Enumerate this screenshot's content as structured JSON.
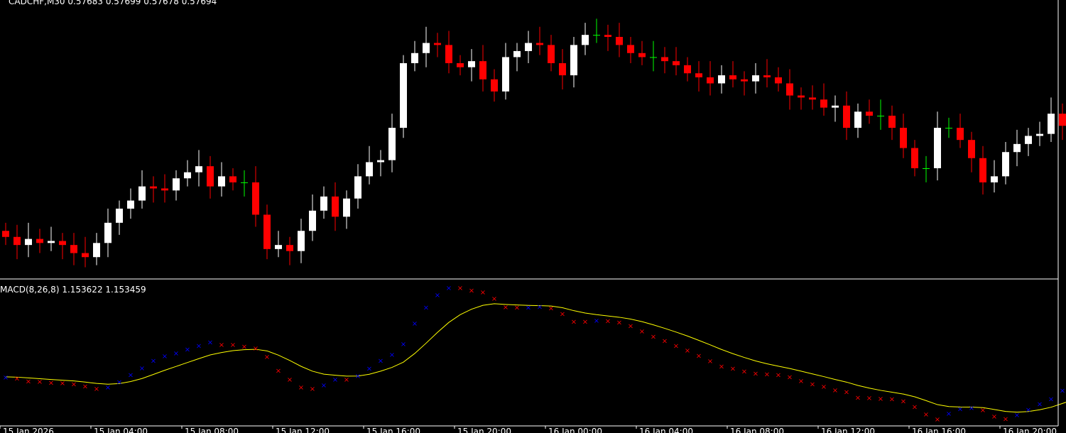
{
  "chart_data": {
    "type": "candlestick",
    "title": "CADCHF,M30  0.57683 0.57699 0.57678 0.57694",
    "x_tick_labels": [
      "15 Jan 2026",
      "15 Jan 04:00",
      "15 Jan 08:00",
      "15 Jan 12:00",
      "15 Jan 16:00",
      "15 Jan 20:00",
      "16 Jan 00:00",
      "16 Jan 04:00",
      "16 Jan 08:00",
      "16 Jan 12:00",
      "16 Jan 16:00",
      "16 Jan 20:00"
    ],
    "up_color": "#ffffff",
    "down_color": "#ff0000",
    "doji_color": "#00ff00",
    "candles_ohlc_px": [],
    "price": {
      "open": [
        0.5661,
        0.5658,
        0.5654,
        0.5657,
        0.5655,
        0.5656,
        0.5654,
        0.565,
        0.5648,
        0.5655,
        0.5665,
        0.5672,
        0.5676,
        0.5683,
        0.5682,
        0.5681,
        0.5687,
        0.569,
        0.5693,
        0.5683,
        0.5688,
        0.5685,
        0.5685,
        0.5669,
        0.5652,
        0.5654,
        0.5651,
        0.5661,
        0.5671,
        0.5678,
        0.5668,
        0.5677,
        0.5688,
        0.5695,
        0.5696,
        0.5712,
        0.5744,
        0.5749,
        0.5754,
        0.5753,
        0.5744,
        0.5742,
        0.5745,
        0.5736,
        0.573,
        0.5747,
        0.575,
        0.5754,
        0.5753,
        0.5744,
        0.5738,
        0.5753,
        0.5758,
        0.5758,
        0.5757,
        0.5753,
        0.5749,
        0.5747,
        0.5747,
        0.5745,
        0.5743,
        0.5739,
        0.5737,
        0.5734,
        0.5738,
        0.5736,
        0.5735,
        0.5738,
        0.5737,
        0.5734,
        0.5728,
        0.5727,
        0.5726,
        0.5722,
        0.5723,
        0.5712,
        0.572,
        0.5718,
        0.5718,
        0.5712,
        0.5702,
        0.5692,
        0.5692,
        0.5712,
        0.5712,
        0.5706,
        0.5697,
        0.5685,
        0.5688,
        0.57,
        0.5704,
        0.5708,
        0.5709,
        0.5719,
        0.5713
      ]
    },
    "macd_indicator": {
      "label": "MACD(8,26,8) 1.153622 1.153459",
      "name": "MACD(8,26,8)",
      "main_value": 1.153622,
      "signal_value": 1.153459,
      "rising_color": "#0000ff",
      "falling_color": "#ff0000",
      "signal_line_color": "#ffff00"
    },
    "grid": false,
    "legend": "none"
  },
  "ui": {
    "background": "#000000",
    "axis_color": "#ffffff"
  }
}
